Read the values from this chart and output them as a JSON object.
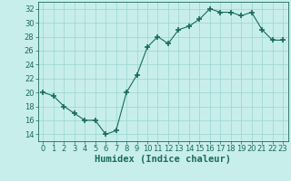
{
  "x": [
    0,
    1,
    2,
    3,
    4,
    5,
    6,
    7,
    8,
    9,
    10,
    11,
    12,
    13,
    14,
    15,
    16,
    17,
    18,
    19,
    20,
    21,
    22,
    23
  ],
  "y": [
    20,
    19.5,
    18,
    17,
    16,
    16,
    14,
    14.5,
    20,
    22.5,
    26.5,
    28,
    27,
    29,
    29.5,
    30.5,
    32,
    31.5,
    31.5,
    31,
    31.5,
    29,
    27.5,
    27.5
  ],
  "line_color": "#1a6b5a",
  "marker": "+",
  "marker_size": 5,
  "bg_color": "#c8eeec",
  "grid_color": "#a0d8d4",
  "xlabel": "Humidex (Indice chaleur)",
  "ylim": [
    13,
    33
  ],
  "xlim": [
    -0.5,
    23.5
  ],
  "yticks": [
    14,
    16,
    18,
    20,
    22,
    24,
    26,
    28,
    30,
    32
  ],
  "xticks": [
    0,
    1,
    2,
    3,
    4,
    5,
    6,
    7,
    8,
    9,
    10,
    11,
    12,
    13,
    14,
    15,
    16,
    17,
    18,
    19,
    20,
    21,
    22,
    23
  ],
  "tick_label_fontsize": 6,
  "xlabel_fontsize": 7.5
}
